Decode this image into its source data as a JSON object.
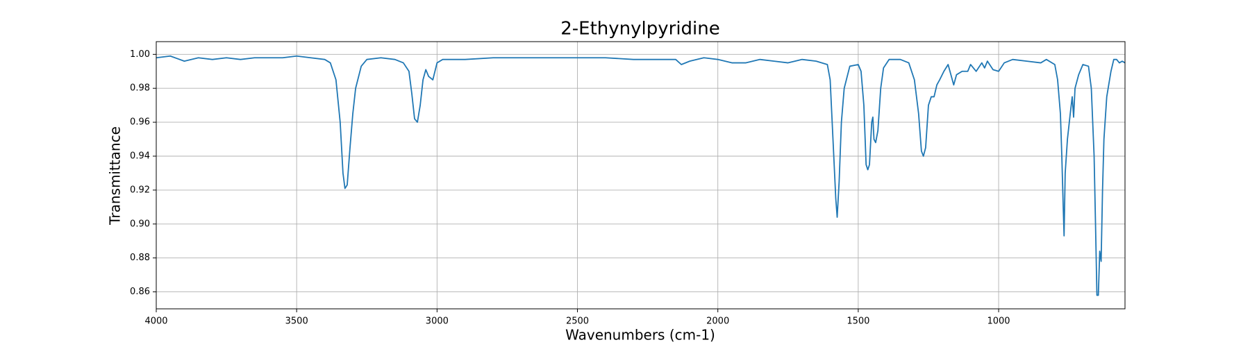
{
  "chart_data": {
    "type": "line",
    "title": "2-Ethynylpyridine",
    "x_label": "Wavenumbers (cm-1)",
    "y_label": "Transmittance",
    "grid": true,
    "xlim": [
      4000,
      550
    ],
    "ylim": [
      0.85,
      1.0075
    ],
    "xticks": [
      4000,
      3500,
      3000,
      2500,
      2000,
      1500,
      1000
    ],
    "yticks": [
      0.86,
      0.88,
      {
        "value": 0.9,
        "label": "0.90"
      },
      0.92,
      0.94,
      0.96,
      0.98,
      {
        "value": 1,
        "label": "1.00"
      }
    ],
    "x": [
      4000,
      3950,
      3900,
      3850,
      3800,
      3750,
      3700,
      3650,
      3600,
      3550,
      3500,
      3450,
      3400,
      3380,
      3360,
      3345,
      3335,
      3328,
      3320,
      3310,
      3300,
      3290,
      3270,
      3250,
      3200,
      3150,
      3120,
      3100,
      3090,
      3080,
      3070,
      3060,
      3050,
      3040,
      3030,
      3015,
      3000,
      2980,
      2900,
      2800,
      2700,
      2600,
      2500,
      2400,
      2300,
      2200,
      2150,
      2130,
      2100,
      2050,
      2000,
      1950,
      1900,
      1850,
      1800,
      1750,
      1700,
      1650,
      1610,
      1600,
      1590,
      1580,
      1575,
      1568,
      1560,
      1550,
      1530,
      1500,
      1490,
      1480,
      1472,
      1466,
      1460,
      1452,
      1448,
      1444,
      1438,
      1430,
      1420,
      1410,
      1390,
      1350,
      1320,
      1300,
      1285,
      1275,
      1268,
      1260,
      1250,
      1240,
      1230,
      1220,
      1210,
      1195,
      1180,
      1170,
      1160,
      1150,
      1130,
      1110,
      1100,
      1080,
      1060,
      1050,
      1040,
      1020,
      1000,
      980,
      950,
      900,
      850,
      830,
      800,
      790,
      780,
      775,
      770,
      767,
      763,
      755,
      745,
      738,
      733,
      728,
      715,
      700,
      680,
      670,
      660,
      655,
      650,
      645,
      640,
      635,
      630,
      625,
      615,
      600,
      590,
      580,
      570,
      560,
      550
    ],
    "series": [
      {
        "name": "2-Ethynylpyridine",
        "color": "#1f77b4",
        "values": [
          0.998,
          0.999,
          0.996,
          0.998,
          0.997,
          0.998,
          0.997,
          0.998,
          0.998,
          0.998,
          0.999,
          0.998,
          0.997,
          0.995,
          0.985,
          0.96,
          0.93,
          0.921,
          0.923,
          0.945,
          0.965,
          0.98,
          0.993,
          0.997,
          0.998,
          0.997,
          0.995,
          0.99,
          0.977,
          0.962,
          0.96,
          0.97,
          0.985,
          0.991,
          0.987,
          0.985,
          0.995,
          0.997,
          0.997,
          0.998,
          0.998,
          0.998,
          0.998,
          0.998,
          0.997,
          0.997,
          0.997,
          0.994,
          0.996,
          0.998,
          0.997,
          0.995,
          0.995,
          0.997,
          0.996,
          0.995,
          0.997,
          0.996,
          0.994,
          0.985,
          0.95,
          0.915,
          0.904,
          0.925,
          0.96,
          0.98,
          0.993,
          0.994,
          0.99,
          0.97,
          0.935,
          0.932,
          0.935,
          0.96,
          0.963,
          0.95,
          0.948,
          0.955,
          0.98,
          0.992,
          0.997,
          0.997,
          0.995,
          0.985,
          0.965,
          0.943,
          0.94,
          0.945,
          0.97,
          0.975,
          0.975,
          0.982,
          0.985,
          0.99,
          0.994,
          0.988,
          0.982,
          0.988,
          0.99,
          0.99,
          0.994,
          0.99,
          0.995,
          0.992,
          0.996,
          0.991,
          0.99,
          0.995,
          0.997,
          0.996,
          0.995,
          0.997,
          0.994,
          0.985,
          0.965,
          0.94,
          0.91,
          0.893,
          0.93,
          0.95,
          0.965,
          0.975,
          0.963,
          0.98,
          0.988,
          0.994,
          0.993,
          0.98,
          0.94,
          0.9,
          0.858,
          0.858,
          0.884,
          0.878,
          0.92,
          0.95,
          0.975,
          0.99,
          0.997,
          0.997,
          0.995,
          0.996,
          0.995
        ]
      }
    ]
  }
}
